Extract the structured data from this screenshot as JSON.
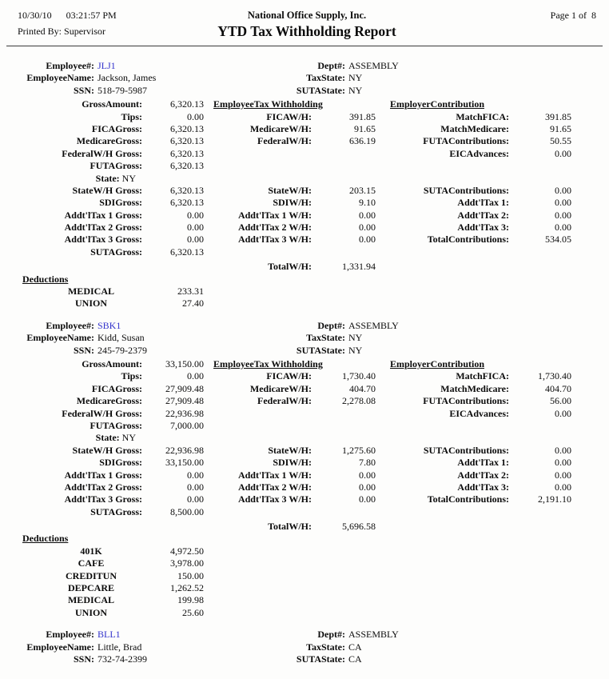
{
  "header": {
    "date": "10/30/10",
    "time": "03:21:57 PM",
    "printed_by_label": "Printed By:",
    "printed_by": "Supervisor",
    "company": "National Office Supply, Inc.",
    "title": "YTD Tax Withholding Report",
    "page_label": "Page 1 of  8"
  },
  "labels": {
    "employee_no": "Employee#:",
    "employee_name": "EmployeeName:",
    "ssn": "SSN:",
    "dept": "Dept#:",
    "tax_state": "TaxState:",
    "suta_state": "SUTAState:",
    "gross_amount": "GrossAmount:",
    "tips": "Tips:",
    "fica_gross": "FICAGross:",
    "medicare_gross": "MedicareGross:",
    "federal_wh_gross": "FederalW/H Gross:",
    "futa_gross": "FUTAGross:",
    "state": "State:",
    "state_wh_gross": "StateW/H Gross:",
    "sdi_gross": "SDIGross:",
    "addl1_gross": "Addt'lTax 1 Gross:",
    "addl2_gross": "Addt'lTax 2 Gross:",
    "addl3_gross": "Addt'lTax 3 Gross:",
    "suta_gross": "SUTAGross:",
    "employee_tax_withholding": "EmployeeTax Withholding",
    "fica_wh": "FICAW/H:",
    "medicare_wh": "MedicareW/H:",
    "federal_wh": "FederalW/H:",
    "state_wh": "StateW/H:",
    "sdi_wh": "SDIW/H:",
    "addl1_wh": "Addt'lTax 1 W/H:",
    "addl2_wh": "Addt'lTax 2 W/H:",
    "addl3_wh": "Addt'lTax 3 W/H:",
    "total_wh": "TotalW/H:",
    "employer_contribution": "EmployerContribution",
    "match_fica": "MatchFICA:",
    "match_medicare": "MatchMedicare:",
    "futa_contributions": "FUTAContributions:",
    "eic_advances": "EICAdvances:",
    "suta_contributions": "SUTAContributions:",
    "addl1": "Addt'lTax 1:",
    "addl2": "Addt'lTax 2:",
    "addl3": "Addt'lTax 3:",
    "total_contributions": "TotalContributions:",
    "deductions": "Deductions"
  },
  "colors": {
    "employee_link": "#3333cc",
    "text": "#0b0b0b"
  },
  "employees": [
    {
      "employee_no": "JLJ1",
      "employee_name": "Jackson, James",
      "ssn": "518-79-5987",
      "dept": "ASSEMBLY",
      "tax_state": "NY",
      "suta_state": "NY",
      "partial": false,
      "gross": {
        "gross_amount": "6,320.13",
        "tips": "0.00",
        "fica_gross": "6,320.13",
        "medicare_gross": "6,320.13",
        "federal_wh_gross": "6,320.13",
        "futa_gross": "6,320.13",
        "state": "NY",
        "state_wh_gross": "6,320.13",
        "sdi_gross": "6,320.13",
        "addl1_gross": "0.00",
        "addl2_gross": "0.00",
        "addl3_gross": "0.00",
        "suta_gross": "6,320.13"
      },
      "withholding": {
        "fica_wh": "391.85",
        "medicare_wh": "91.65",
        "federal_wh": "636.19",
        "state_wh": "203.15",
        "sdi_wh": "9.10",
        "addl1_wh": "0.00",
        "addl2_wh": "0.00",
        "addl3_wh": "0.00",
        "total_wh": "1,331.94"
      },
      "employer": {
        "match_fica": "391.85",
        "match_medicare": "91.65",
        "futa_contributions": "50.55",
        "eic_advances": "0.00",
        "suta_contributions": "0.00",
        "addl1": "0.00",
        "addl2": "0.00",
        "addl3": "0.00",
        "total_contributions": "534.05"
      },
      "deductions": [
        {
          "name": "MEDICAL",
          "amount": "233.31"
        },
        {
          "name": "UNION",
          "amount": "27.40"
        }
      ]
    },
    {
      "employee_no": "SBK1",
      "employee_name": "Kidd, Susan",
      "ssn": "245-79-2379",
      "dept": "ASSEMBLY",
      "tax_state": "NY",
      "suta_state": "NY",
      "partial": false,
      "gross": {
        "gross_amount": "33,150.00",
        "tips": "0.00",
        "fica_gross": "27,909.48",
        "medicare_gross": "27,909.48",
        "federal_wh_gross": "22,936.98",
        "futa_gross": "7,000.00",
        "state": "NY",
        "state_wh_gross": "22,936.98",
        "sdi_gross": "33,150.00",
        "addl1_gross": "0.00",
        "addl2_gross": "0.00",
        "addl3_gross": "0.00",
        "suta_gross": "8,500.00"
      },
      "withholding": {
        "fica_wh": "1,730.40",
        "medicare_wh": "404.70",
        "federal_wh": "2,278.08",
        "state_wh": "1,275.60",
        "sdi_wh": "7.80",
        "addl1_wh": "0.00",
        "addl2_wh": "0.00",
        "addl3_wh": "0.00",
        "total_wh": "5,696.58"
      },
      "employer": {
        "match_fica": "1,730.40",
        "match_medicare": "404.70",
        "futa_contributions": "56.00",
        "eic_advances": "0.00",
        "suta_contributions": "0.00",
        "addl1": "0.00",
        "addl2": "0.00",
        "addl3": "0.00",
        "total_contributions": "2,191.10"
      },
      "deductions": [
        {
          "name": "401K",
          "amount": "4,972.50"
        },
        {
          "name": "CAFE",
          "amount": "3,978.00"
        },
        {
          "name": "CREDITUN",
          "amount": "150.00"
        },
        {
          "name": "DEPCARE",
          "amount": "1,262.52"
        },
        {
          "name": "MEDICAL",
          "amount": "199.98"
        },
        {
          "name": "UNION",
          "amount": "25.60"
        }
      ]
    },
    {
      "employee_no": "BLL1",
      "employee_name": "Little, Brad",
      "ssn": "732-74-2399",
      "dept": "ASSEMBLY",
      "tax_state": "CA",
      "suta_state": "CA",
      "partial": true,
      "deductions": []
    }
  ]
}
